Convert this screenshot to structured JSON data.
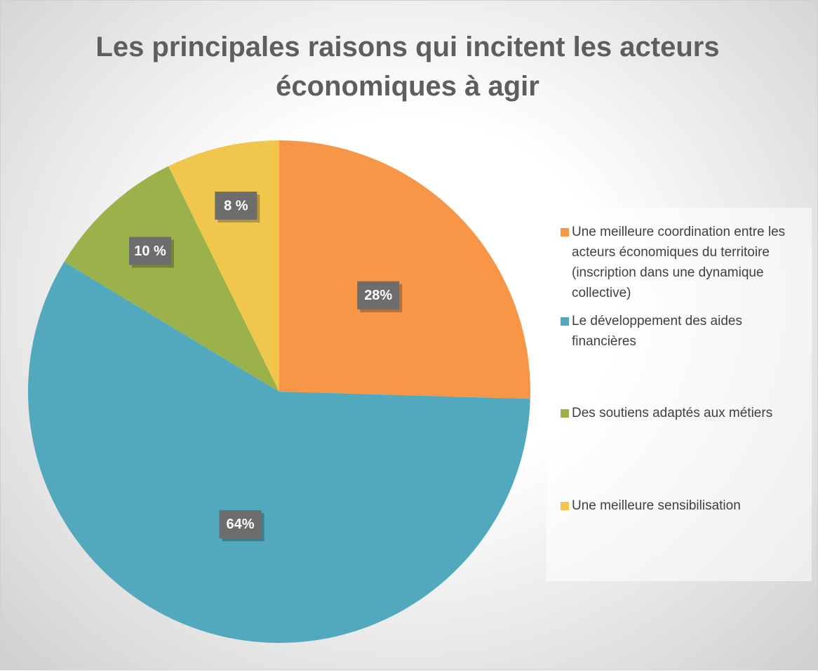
{
  "chart_data": {
    "type": "pie",
    "title": "Les principales raisons qui incitent les acteurs économiques à agir",
    "categories": [
      "Une meilleure coordination entre les acteurs économiques du territoire (inscription dans une dynamique collective)",
      "Le développement des aides financières",
      "Des soutiens adaptés aux métiers",
      "Une meilleure sensibilisation"
    ],
    "values": [
      28,
      64,
      10,
      8
    ],
    "value_labels": [
      "28%",
      "64%",
      "10 %",
      "8 %"
    ],
    "colors": [
      "#f79646",
      "#52a9bd",
      "#9bb24a",
      "#f0c74c"
    ],
    "legend": "right"
  }
}
